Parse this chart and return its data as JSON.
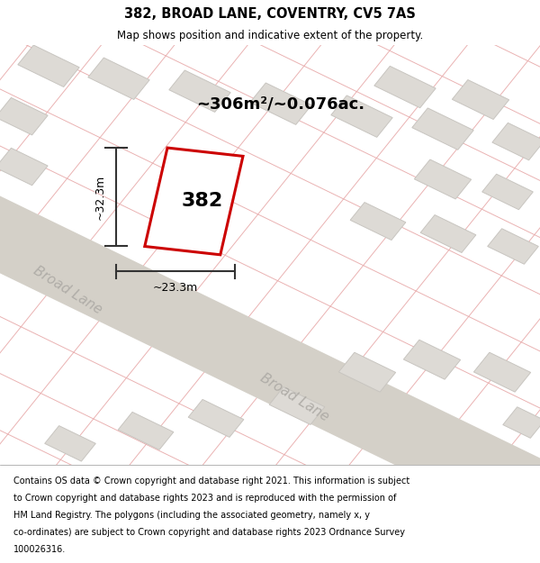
{
  "title": "382, BROAD LANE, COVENTRY, CV5 7AS",
  "subtitle": "Map shows position and indicative extent of the property.",
  "footer_lines": [
    "Contains OS data © Crown copyright and database right 2021. This information is subject",
    "to Crown copyright and database rights 2023 and is reproduced with the permission of",
    "HM Land Registry. The polygons (including the associated geometry, namely x, y",
    "co-ordinates) are subject to Crown copyright and database rights 2023 Ordnance Survey",
    "100026316."
  ],
  "area_label": "~306m²/~0.076ac.",
  "width_label": "~23.3m",
  "height_label": "~32.3m",
  "property_number": "382",
  "bg_color": "#eeecea",
  "road_color": "#d4d0c8",
  "block_fc": "#dddad5",
  "block_ec": "#c8c5c0",
  "red_outline": "#cc0000",
  "dim_line_color": "#333333",
  "road_label_color": "#b0ada8",
  "red_grid_color": "#e8aaaa",
  "title_fontsize": 10.5,
  "subtitle_fontsize": 8.5,
  "footer_fontsize": 7.0,
  "area_fontsize": 13,
  "number_fontsize": 16,
  "dim_fontsize": 9,
  "road_fontsize": 11
}
